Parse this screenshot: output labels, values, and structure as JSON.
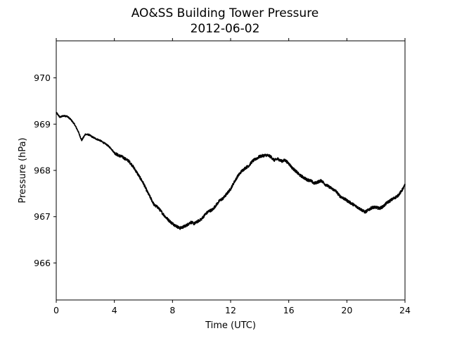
{
  "chart_data": {
    "type": "line",
    "title": "AO&SS Building Tower Pressure",
    "subtitle": "2012-06-02",
    "xlabel": "Time (UTC)",
    "ylabel": "Pressure (hPa)",
    "xlim": [
      0,
      24
    ],
    "ylim": [
      965.2,
      970.8
    ],
    "xticks": [
      0,
      4,
      8,
      12,
      16,
      20,
      24
    ],
    "xtick_labels": [
      "0",
      "4",
      "8",
      "12",
      "16",
      "20",
      "24"
    ],
    "yticks": [
      966,
      967,
      968,
      969,
      970
    ],
    "ytick_labels": [
      "966",
      "967",
      "968",
      "969",
      "970"
    ],
    "grid": false,
    "legend": "none",
    "line_color": "#000000",
    "series": [
      {
        "x": [
          0,
          0.25,
          0.5,
          0.75,
          1.0,
          1.25,
          1.5,
          1.75,
          2.0,
          2.25,
          2.5,
          2.75,
          3.0,
          3.25,
          3.5,
          3.75,
          4.0,
          4.25,
          4.5,
          4.75,
          5.0,
          5.25,
          5.5,
          5.75,
          6.0,
          6.25,
          6.5,
          6.75,
          7.0,
          7.25,
          7.5,
          7.75,
          8.0,
          8.25,
          8.5,
          8.75,
          9.0,
          9.25,
          9.5,
          9.75,
          10.0,
          10.25,
          10.5,
          10.75,
          11.0,
          11.25,
          11.5,
          11.75,
          12.0,
          12.25,
          12.5,
          12.75,
          13.0,
          13.25,
          13.5,
          13.75,
          14.0,
          14.25,
          14.5,
          14.75,
          15.0,
          15.25,
          15.5,
          15.75,
          16.0,
          16.25,
          16.5,
          16.75,
          17.0,
          17.25,
          17.5,
          17.75,
          18.0,
          18.25,
          18.5,
          18.75,
          19.0,
          19.25,
          19.5,
          19.75,
          20.0,
          20.25,
          20.5,
          20.75,
          21.0,
          21.25,
          21.5,
          21.75,
          22.0,
          22.25,
          22.5,
          22.75,
          23.0,
          23.25,
          23.5,
          23.75,
          24.0
        ],
        "values": [
          969.25,
          969.15,
          969.18,
          969.17,
          969.1,
          969.0,
          968.85,
          968.65,
          968.78,
          968.77,
          968.72,
          968.68,
          968.65,
          968.6,
          968.55,
          968.48,
          968.38,
          968.33,
          968.3,
          968.25,
          968.2,
          968.1,
          967.98,
          967.85,
          967.72,
          967.55,
          967.4,
          967.25,
          967.2,
          967.1,
          967.0,
          966.92,
          966.85,
          966.8,
          966.75,
          966.78,
          966.82,
          966.88,
          966.85,
          966.9,
          966.95,
          967.05,
          967.12,
          967.15,
          967.25,
          967.35,
          967.4,
          967.5,
          967.6,
          967.75,
          967.88,
          967.98,
          968.05,
          968.1,
          968.2,
          968.25,
          968.3,
          968.32,
          968.33,
          968.3,
          968.22,
          968.25,
          968.2,
          968.22,
          968.15,
          968.05,
          967.98,
          967.9,
          967.85,
          967.8,
          967.78,
          967.72,
          967.75,
          967.78,
          967.7,
          967.65,
          967.6,
          967.55,
          967.45,
          967.4,
          967.35,
          967.3,
          967.25,
          967.2,
          967.15,
          967.1,
          967.15,
          967.2,
          967.2,
          967.18,
          967.22,
          967.3,
          967.35,
          967.4,
          967.45,
          967.55,
          967.68
        ]
      }
    ]
  }
}
